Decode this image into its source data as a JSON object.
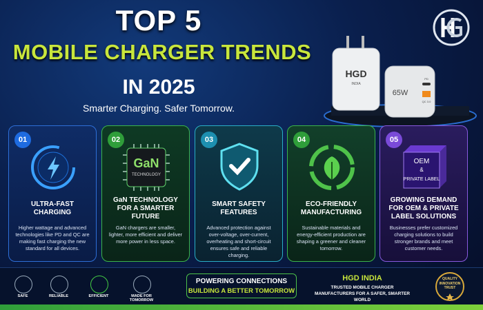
{
  "header": {
    "title_line1": "TOP 5",
    "title_line2": "MOBILE CHARGER TRENDS",
    "title_line3": "IN 2025",
    "subtitle": "Smarter Charging. Safer Tomorrow."
  },
  "product": {
    "brand": "HGD",
    "brand_sub": "INDIA",
    "wattage": "65W",
    "port_label_1": "PD",
    "port_label_2": "QC 3.0"
  },
  "cards": [
    {
      "number": "01",
      "title": "ULTRA-FAST CHARGING",
      "description": "Higher wattage and advanced technologies like PD and QC are making fast charging the new standard for all devices."
    },
    {
      "number": "02",
      "title": "GaN TECHNOLOGY FOR A SMARTER FUTURE",
      "icon_text": "GaN",
      "icon_subtext": "TECHNOLOGY",
      "description": "GaN chargers are smaller, lighter, more efficient and deliver more power in less space."
    },
    {
      "number": "03",
      "title": "SMART SAFETY FEATURES",
      "description": "Advanced protection against over-voltage, over-current, overheating and short-circuit ensures safe and reliable charging."
    },
    {
      "number": "04",
      "title": "ECO-FRIENDLY MANUFACTURING",
      "description": "Sustainable materials and energy-efficient production are shaping a greener and cleaner tomorrow."
    },
    {
      "number": "05",
      "title": "GROWING DEMAND FOR OEM & PRIVATE LABEL SOLUTIONS",
      "icon_text": "OEM",
      "icon_amp": "&",
      "icon_subtext": "PRIVATE LABEL",
      "description": "Businesses prefer customized charging solutions to build stronger brands and meet customer needs."
    }
  ],
  "footer": {
    "features": [
      "SAFE",
      "RELIABLE",
      "EFFICIENT",
      "MADE FOR TOMORROW"
    ],
    "slogan_line1": "POWERING CONNECTIONS",
    "slogan_line2": "BUILDING A BETTER TOMORROW",
    "company_name": "HGD INDIA",
    "company_tagline": "TRUSTED MOBILE CHARGER MANUFACTURERS FOR A SAFER, SMARTER WORLD",
    "badge": "QUALITY INNOVATION TRUST"
  }
}
